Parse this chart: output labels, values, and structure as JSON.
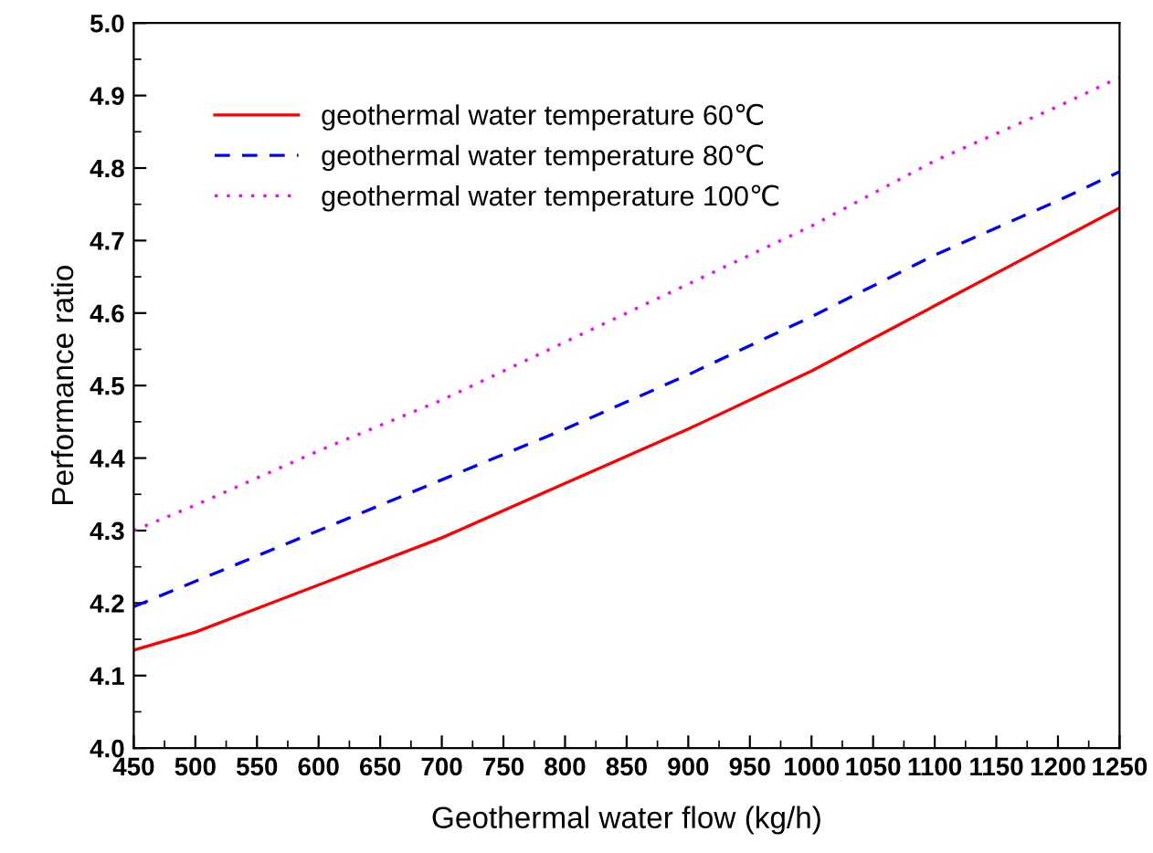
{
  "chart_data": {
    "type": "line",
    "xlabel": "Geothermal water flow (kg/h)",
    "ylabel": "Performance ratio",
    "x": [
      450,
      500,
      600,
      700,
      800,
      900,
      1000,
      1100,
      1200,
      1250
    ],
    "series": [
      {
        "name": "geothermal water temperature 60℃",
        "color": "#ff0000",
        "line_style": "solid",
        "values": [
          4.135,
          4.16,
          4.225,
          4.29,
          4.365,
          4.44,
          4.52,
          4.61,
          4.7,
          4.745
        ]
      },
      {
        "name": "geothermal water temperature 80℃",
        "color": "#0000ff",
        "line_style": "dashed",
        "values": [
          4.195,
          4.23,
          4.3,
          4.37,
          4.44,
          4.515,
          4.595,
          4.68,
          4.755,
          4.795
        ]
      },
      {
        "name": "geothermal water temperature 100℃",
        "color": "#ff00ff",
        "line_style": "dotted",
        "values": [
          4.3,
          4.335,
          4.41,
          4.48,
          4.56,
          4.64,
          4.72,
          4.81,
          4.885,
          4.925
        ]
      }
    ],
    "xlim": [
      450,
      1250
    ],
    "xticks": [
      450,
      500,
      550,
      600,
      650,
      700,
      750,
      800,
      850,
      900,
      950,
      1000,
      1050,
      1100,
      1150,
      1200,
      1250
    ],
    "ylim": [
      4.0,
      5.0
    ],
    "yticks": [
      {
        "value": 4.0,
        "label": "4.0"
      },
      {
        "value": 4.1,
        "label": "4.1"
      },
      {
        "value": 4.2,
        "label": "4.2"
      },
      {
        "value": 4.3,
        "label": "4.3"
      },
      {
        "value": 4.4,
        "label": "4.4"
      },
      {
        "value": 4.5,
        "label": "4.5"
      },
      {
        "value": 4.6,
        "label": "4.6"
      },
      {
        "value": 4.7,
        "label": "4.7"
      },
      {
        "value": 4.8,
        "label": "4.8"
      },
      {
        "value": 4.9,
        "label": "4.9"
      },
      {
        "value": 5.0,
        "label": "5.0"
      }
    ],
    "grid": false,
    "legend": "top left",
    "marker": "none"
  }
}
